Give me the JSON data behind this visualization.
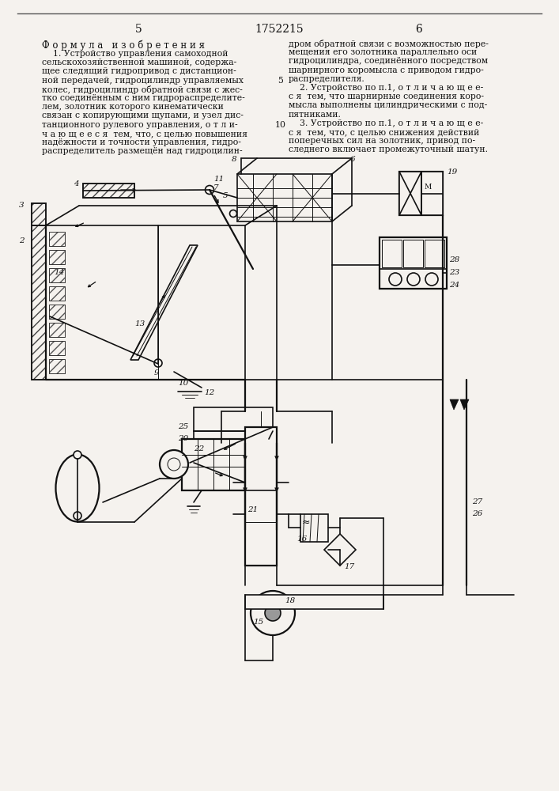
{
  "bg_color": "#f5f2ee",
  "text_color": "#111111",
  "page_num_left": "5",
  "page_num_center": "1752215",
  "page_num_right": "6",
  "title": "Ф о р м у л а   и з о б р е т е н и я",
  "left_col_lines": [
    "    1. Устройство управления самоходной",
    "сельскохозяйственной машиной, содержа-",
    "щее следящий гидропривод с дистанцион-",
    "ной передачей, гидроцилиндр управляемых",
    "колес, гидроцилиндр обратной связи с жес-",
    "тко соединённым с ним гидрораспределите-",
    "лем, золотник которого кинематически",
    "связан с копирующими щупами, и узел дис-",
    "танционного рулевого управления, о т л и-",
    "ч а ю щ е е с я  тем, что, с целью повышения",
    "надёжности и точности управления, гидро-",
    "распределитель размещён над гидроцилин-"
  ],
  "right_col_lines": [
    "дром обратной связи с возможностью пере-",
    "мещения его золотника параллельно оси",
    "гидроцилиндра, соединённого посредством",
    "шарнирного коромысла с приводом гидро-",
    "распределителя.",
    "    2. Устройство по п.1, о т л и ч а ю щ е е-",
    "с я  тем, что шарнирные соединения коро-",
    "мысла выполнены цилиндрическими с под-",
    "пятниками.",
    "    3. Устройство по п.1, о т л и ч а ю щ е е-",
    "с я  тем, что, с целью снижения действий",
    "поперечных сил на золотник, привод по-",
    "следнего включает промежуточный шатун."
  ],
  "line_nums": {
    "5": 3,
    "10": 8
  },
  "draw_color": "#111111",
  "hatch_color": "#333333"
}
